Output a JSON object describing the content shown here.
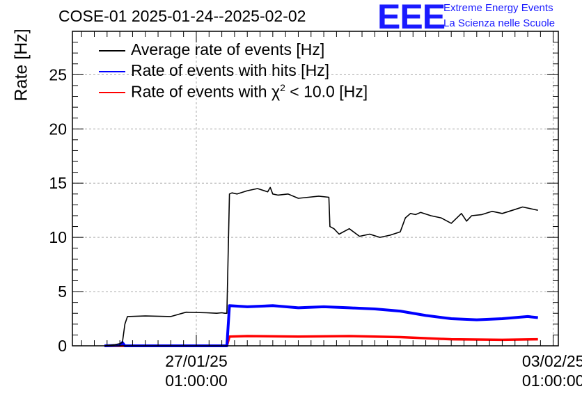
{
  "header": {
    "title": "COSE-01 2025-01-24--2025-02-02",
    "logo_text": "EEE",
    "logo_line1": "Extreme Energy Events",
    "logo_line2": "La Scienza nelle Scuole"
  },
  "colors": {
    "average": "#000000",
    "hits": "#0000ff",
    "chi2": "#ff0000",
    "logo": "#1a1aff"
  },
  "legend": {
    "average": "Average rate of events [Hz]",
    "hits": "Rate of events with hits [Hz]",
    "chi2_prefix": "Rate of events with ",
    "chi2_symbol": "χ",
    "chi2_sup": "2",
    "chi2_suffix": " < 10.0 [Hz]"
  },
  "chart_data": {
    "type": "line",
    "title": "COSE-01 2025-01-24--2025-02-02",
    "ylabel": "Rate [Hz]",
    "xlabel": "",
    "ylim": [
      0,
      29
    ],
    "xlim": [
      -2.43,
      7.1
    ],
    "yticks": [
      0,
      5,
      10,
      15,
      20,
      25
    ],
    "xtick_labels": [
      {
        "x": 0,
        "line1": "27/01/25",
        "line2": "01:00:00"
      },
      {
        "x": 7,
        "line1": "03/02/25",
        "line2": "01:00:00"
      }
    ],
    "grid": true,
    "legend_position": "top-left",
    "x_unit": "days relative to 27/01/25 01:00:00",
    "series": [
      {
        "name": "Average rate of events [Hz]",
        "key": "average",
        "x": [
          -1.8,
          -1.6,
          -1.5,
          -1.45,
          -1.4,
          -1.35,
          -1.0,
          -0.5,
          -0.2,
          0.2,
          0.4,
          0.5,
          0.56,
          0.6,
          0.65,
          0.7,
          0.8,
          1.0,
          1.2,
          1.4,
          1.45,
          1.5,
          1.6,
          1.8,
          2.0,
          2.2,
          2.4,
          2.6,
          2.62,
          2.7,
          2.8,
          3.0,
          3.2,
          3.4,
          3.6,
          3.8,
          4.0,
          4.1,
          4.2,
          4.3,
          4.4,
          4.6,
          4.8,
          5.0,
          5.2,
          5.3,
          5.4,
          5.6,
          5.8,
          6.0,
          6.2,
          6.4,
          6.6,
          6.7
        ],
        "y": [
          0,
          0.1,
          0.2,
          0.3,
          2.0,
          2.7,
          2.75,
          2.7,
          3.1,
          3.05,
          3.0,
          3.05,
          3.0,
          3.0,
          14.0,
          14.1,
          14.0,
          14.3,
          14.5,
          14.2,
          14.6,
          14.0,
          13.9,
          14.0,
          13.6,
          13.7,
          13.8,
          13.7,
          11.0,
          10.8,
          10.3,
          10.8,
          10.1,
          10.3,
          10.0,
          10.2,
          10.5,
          11.8,
          12.2,
          12.1,
          12.3,
          12.0,
          11.8,
          11.3,
          12.2,
          11.5,
          12.0,
          12.1,
          12.4,
          12.2,
          12.5,
          12.8,
          12.6,
          12.5
        ]
      },
      {
        "name": "Rate of events with hits [Hz]",
        "key": "hits",
        "x": [
          -1.8,
          -1.5,
          -1.45,
          -1.4,
          0.55,
          0.6,
          0.65,
          1.0,
          1.5,
          2.0,
          2.5,
          3.0,
          3.5,
          4.0,
          4.5,
          5.0,
          5.5,
          6.0,
          6.5,
          6.7
        ],
        "y": [
          0,
          0.05,
          0.3,
          0,
          0,
          0,
          3.7,
          3.6,
          3.7,
          3.5,
          3.6,
          3.5,
          3.4,
          3.2,
          2.8,
          2.5,
          2.4,
          2.5,
          2.7,
          2.6
        ]
      },
      {
        "name": "Rate of events with χ2 < 10.0 [Hz]",
        "key": "chi2",
        "x": [
          -1.8,
          0.6,
          0.65,
          1.0,
          2.0,
          3.0,
          4.0,
          5.0,
          6.0,
          6.7
        ],
        "y": [
          0,
          0,
          0.85,
          0.9,
          0.85,
          0.9,
          0.8,
          0.6,
          0.55,
          0.6
        ]
      }
    ]
  }
}
